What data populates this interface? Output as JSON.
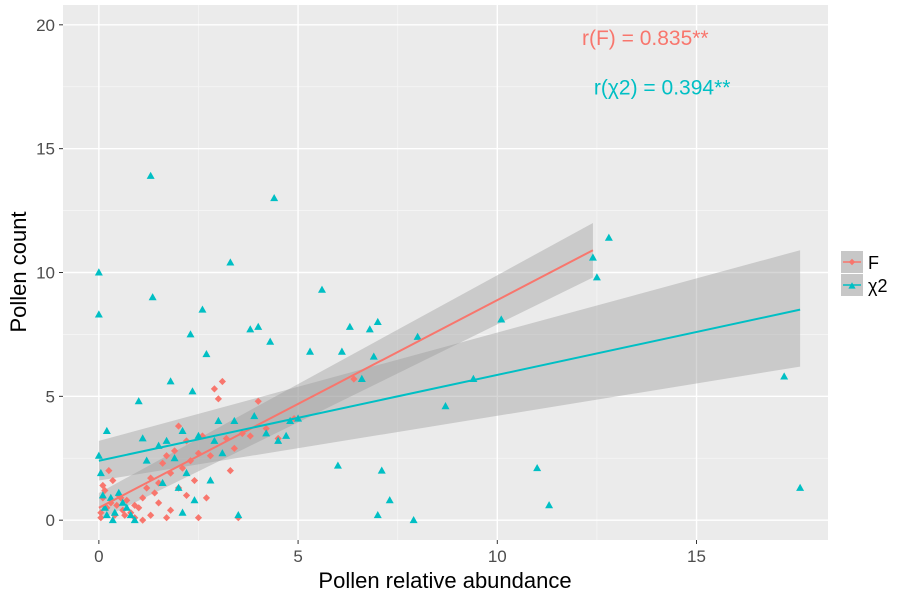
{
  "chart_data": {
    "type": "scatter",
    "title": "",
    "xlabel": "Pollen relative abundance",
    "ylabel": "Pollen count",
    "xlim": [
      -0.9,
      18.3
    ],
    "ylim": [
      -0.8,
      20.8
    ],
    "x_ticks": [
      0,
      5,
      10,
      15
    ],
    "y_ticks": [
      0,
      5,
      10,
      15,
      20
    ],
    "x_tick_labels": [
      "0",
      "5",
      "10",
      "15"
    ],
    "y_tick_labels": [
      "0",
      "5",
      "10",
      "15",
      "20"
    ],
    "grid": true,
    "background": "#ebebeb",
    "legend_position": "right",
    "annotations": [
      {
        "text": "r(F) = 0.835**",
        "x": 12.2,
        "y": 19.5,
        "series": "F"
      },
      {
        "text": "r(χ2) = 0.394**",
        "x": 12.5,
        "y": 17.5,
        "series": "χ2"
      }
    ],
    "series": [
      {
        "name": "F",
        "marker": "diamond",
        "color": "#f8766d",
        "points": [
          [
            0.05,
            0.3
          ],
          [
            0.1,
            0.9
          ],
          [
            0.15,
            1.2
          ],
          [
            0.2,
            0.5
          ],
          [
            0.05,
            0.1
          ],
          [
            0.3,
            0.7
          ],
          [
            0.4,
            0.2
          ],
          [
            0.5,
            1.0
          ],
          [
            0.6,
            0.4
          ],
          [
            0.7,
            0.8
          ],
          [
            0.8,
            0.3
          ],
          [
            0.9,
            0.1
          ],
          [
            0.35,
            1.6
          ],
          [
            0.25,
            2.0
          ],
          [
            0.1,
            1.4
          ],
          [
            0.45,
            0.6
          ],
          [
            0.55,
            0.9
          ],
          [
            0.65,
            0.2
          ],
          [
            1.0,
            0.5
          ],
          [
            1.1,
            0.9
          ],
          [
            1.2,
            1.3
          ],
          [
            1.3,
            1.7
          ],
          [
            1.4,
            1.1
          ],
          [
            1.5,
            1.5
          ],
          [
            1.6,
            2.3
          ],
          [
            1.7,
            2.6
          ],
          [
            1.8,
            1.9
          ],
          [
            1.9,
            2.8
          ],
          [
            2.0,
            3.8
          ],
          [
            2.1,
            2.1
          ],
          [
            2.2,
            3.2
          ],
          [
            2.3,
            2.4
          ],
          [
            2.4,
            1.6
          ],
          [
            2.5,
            2.7
          ],
          [
            2.6,
            3.4
          ],
          [
            2.7,
            0.9
          ],
          [
            2.8,
            2.6
          ],
          [
            2.9,
            5.3
          ],
          [
            3.0,
            4.9
          ],
          [
            3.1,
            5.6
          ],
          [
            3.2,
            3.3
          ],
          [
            3.3,
            2.0
          ],
          [
            3.4,
            2.9
          ],
          [
            3.5,
            0.1
          ],
          [
            3.6,
            3.5
          ],
          [
            3.8,
            3.4
          ],
          [
            4.0,
            4.8
          ],
          [
            4.2,
            3.7
          ],
          [
            4.5,
            3.3
          ],
          [
            4.9,
            4.1
          ],
          [
            6.4,
            5.7
          ],
          [
            1.3,
            0.2
          ],
          [
            1.5,
            0.7
          ],
          [
            1.7,
            0.1
          ],
          [
            2.2,
            1.0
          ],
          [
            2.5,
            0.1
          ],
          [
            0.9,
            0.6
          ],
          [
            1.1,
            0.0
          ],
          [
            1.8,
            0.4
          ],
          [
            2.0,
            1.3
          ]
        ],
        "fit": {
          "x": [
            0.0,
            12.4
          ],
          "y": [
            0.5,
            10.9
          ],
          "ci_start": [
            0.0,
            1.1
          ],
          "ci_end": [
            9.8,
            12.0
          ]
        }
      },
      {
        "name": "χ2",
        "marker": "triangle",
        "color": "#00bfc4",
        "points": [
          [
            0.0,
            10.0
          ],
          [
            0.0,
            8.3
          ],
          [
            0.0,
            2.6
          ],
          [
            0.05,
            1.9
          ],
          [
            0.1,
            1.0
          ],
          [
            0.15,
            0.5
          ],
          [
            0.2,
            3.6
          ],
          [
            0.2,
            0.2
          ],
          [
            0.3,
            0.9
          ],
          [
            0.35,
            0.0
          ],
          [
            0.4,
            0.3
          ],
          [
            0.5,
            1.1
          ],
          [
            0.6,
            0.7
          ],
          [
            0.7,
            0.5
          ],
          [
            0.8,
            0.2
          ],
          [
            0.9,
            0.0
          ],
          [
            1.0,
            4.8
          ],
          [
            1.1,
            3.3
          ],
          [
            1.2,
            2.4
          ],
          [
            1.3,
            13.9
          ],
          [
            1.35,
            9.0
          ],
          [
            1.5,
            3.0
          ],
          [
            1.6,
            1.5
          ],
          [
            1.7,
            3.2
          ],
          [
            1.8,
            5.6
          ],
          [
            1.9,
            2.5
          ],
          [
            2.0,
            1.3
          ],
          [
            2.1,
            3.6
          ],
          [
            2.2,
            1.9
          ],
          [
            2.3,
            7.5
          ],
          [
            2.35,
            5.2
          ],
          [
            2.4,
            0.8
          ],
          [
            2.5,
            3.4
          ],
          [
            2.6,
            8.5
          ],
          [
            2.7,
            6.7
          ],
          [
            2.8,
            1.6
          ],
          [
            2.9,
            3.2
          ],
          [
            3.0,
            4.0
          ],
          [
            3.1,
            2.7
          ],
          [
            3.3,
            10.4
          ],
          [
            3.4,
            4.0
          ],
          [
            3.5,
            0.2
          ],
          [
            3.8,
            7.7
          ],
          [
            4.0,
            7.8
          ],
          [
            4.2,
            3.5
          ],
          [
            4.3,
            7.2
          ],
          [
            4.4,
            13.0
          ],
          [
            4.5,
            3.2
          ],
          [
            4.7,
            3.4
          ],
          [
            4.8,
            4.0
          ],
          [
            5.0,
            4.1
          ],
          [
            5.3,
            6.8
          ],
          [
            5.6,
            9.3
          ],
          [
            6.0,
            2.2
          ],
          [
            6.1,
            6.8
          ],
          [
            6.3,
            7.8
          ],
          [
            6.6,
            5.7
          ],
          [
            6.8,
            7.7
          ],
          [
            6.9,
            6.6
          ],
          [
            7.0,
            8.0
          ],
          [
            7.1,
            2.0
          ],
          [
            7.3,
            0.8
          ],
          [
            7.0,
            0.2
          ],
          [
            7.9,
            0.0
          ],
          [
            8.0,
            7.4
          ],
          [
            8.7,
            4.6
          ],
          [
            9.4,
            5.7
          ],
          [
            10.1,
            8.1
          ],
          [
            11.0,
            2.1
          ],
          [
            11.3,
            0.6
          ],
          [
            12.4,
            10.6
          ],
          [
            12.5,
            9.8
          ],
          [
            12.8,
            11.4
          ],
          [
            17.2,
            5.8
          ],
          [
            17.6,
            1.3
          ],
          [
            2.1,
            0.3
          ],
          [
            3.9,
            4.2
          ]
        ],
        "fit": {
          "x": [
            0.0,
            17.6
          ],
          "y": [
            2.4,
            8.5
          ],
          "ci_start": [
            1.6,
            3.2
          ],
          "ci_end": [
            6.2,
            10.9
          ]
        }
      }
    ],
    "legend": [
      {
        "label": "F",
        "color": "#f8766d",
        "marker": "diamond"
      },
      {
        "label": "χ2",
        "color": "#00bfc4",
        "marker": "triangle"
      }
    ]
  }
}
